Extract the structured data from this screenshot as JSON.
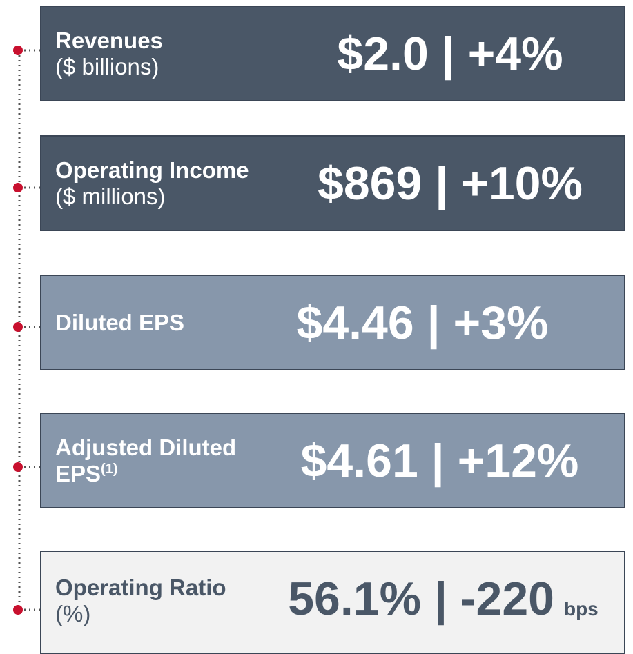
{
  "items": [
    {
      "label": "Revenues",
      "sublabel": "($ billions)",
      "value": "$2.0 | +4%"
    },
    {
      "label": "Operating Income",
      "sublabel": "($ millions)",
      "value": "$869 | +10%"
    },
    {
      "label": "Diluted EPS",
      "value": "$4.46 | +3%"
    },
    {
      "label": "Adjusted Diluted EPS",
      "note": "(1)",
      "value": "$4.61 | +12%"
    },
    {
      "label": "Operating Ratio",
      "sublabel": "(%)",
      "value": "56.1% | -220",
      "unit": "bps"
    }
  ]
}
